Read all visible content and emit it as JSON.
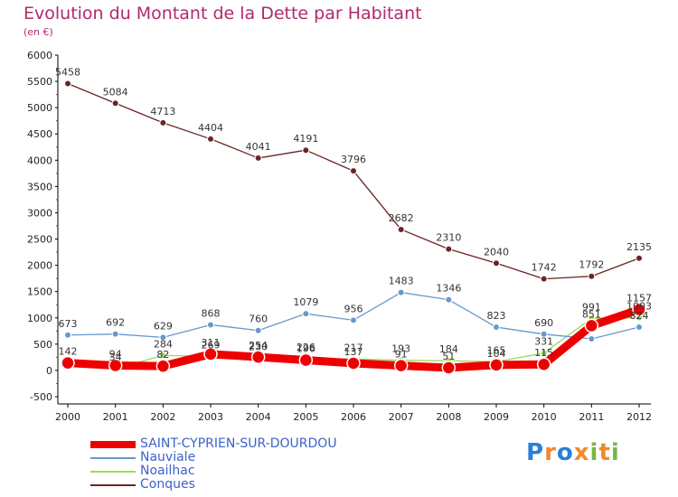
{
  "chart_data": {
    "type": "line",
    "title": "Evolution du Montant de la Dette par Habitant",
    "unit_label": "(en €)",
    "x": [
      "2000",
      "2001",
      "2002",
      "2003",
      "2004",
      "2005",
      "2006",
      "2007",
      "2008",
      "2009",
      "2010",
      "2011",
      "2012"
    ],
    "ylim": [
      -500,
      6000
    ],
    "yticks": [
      -500,
      0,
      500,
      1000,
      1500,
      2000,
      2500,
      3000,
      3500,
      4000,
      4500,
      5000,
      5500,
      6000
    ],
    "grid": false,
    "legend_position": "bottom-left",
    "series": [
      {
        "name": "SAINT-CYPRIEN-SUR-DOURDOU",
        "color": "#ee0000",
        "values": [
          142,
          94,
          82,
          311,
          254,
          196,
          137,
          91,
          51,
          104,
          115,
          851,
          1157
        ],
        "value_labels": [
          "142",
          "94",
          "82",
          "311",
          "254",
          "196",
          "137",
          "91",
          "51",
          "104",
          "115",
          "851",
          "1157"
        ]
      },
      {
        "name": "Nauviale",
        "color": "#6699cc",
        "values": [
          673,
          692,
          629,
          868,
          760,
          1079,
          956,
          1483,
          1346,
          823,
          690,
          600,
          824
        ],
        "value_labels": [
          "673",
          "692",
          "629",
          "868",
          "760",
          "1079",
          "956",
          "1483",
          "1346",
          "823",
          "690",
          "",
          "824"
        ]
      },
      {
        "name": "Noailhac",
        "color": "#99dd55",
        "values": [
          80,
          34,
          284,
          269,
          230,
          226,
          217,
          193,
          184,
          165,
          331,
          991,
          1003
        ],
        "value_labels": [
          "",
          "34",
          "284",
          "269",
          "230",
          "226",
          "217",
          "193",
          "184",
          "165",
          "331",
          "991",
          "1003"
        ]
      },
      {
        "name": "Conques",
        "color": "#6b2424",
        "values": [
          5458,
          5084,
          4713,
          4404,
          4041,
          4191,
          3796,
          2682,
          2310,
          2040,
          1742,
          1792,
          2135
        ],
        "value_labels": [
          "5458",
          "5084",
          "4713",
          "4404",
          "4041",
          "4191",
          "3796",
          "2682",
          "2310",
          "2040",
          "1742",
          "1792",
          "2135"
        ]
      }
    ]
  },
  "logo": {
    "letters": [
      "P",
      "r",
      "o",
      "x",
      "i",
      "t",
      "i"
    ],
    "colors": [
      "#2b7fd6",
      "#f08a2a",
      "#2b7fd6",
      "#f08a2a",
      "#7ab648",
      "#f08a2a",
      "#7ab648"
    ]
  }
}
